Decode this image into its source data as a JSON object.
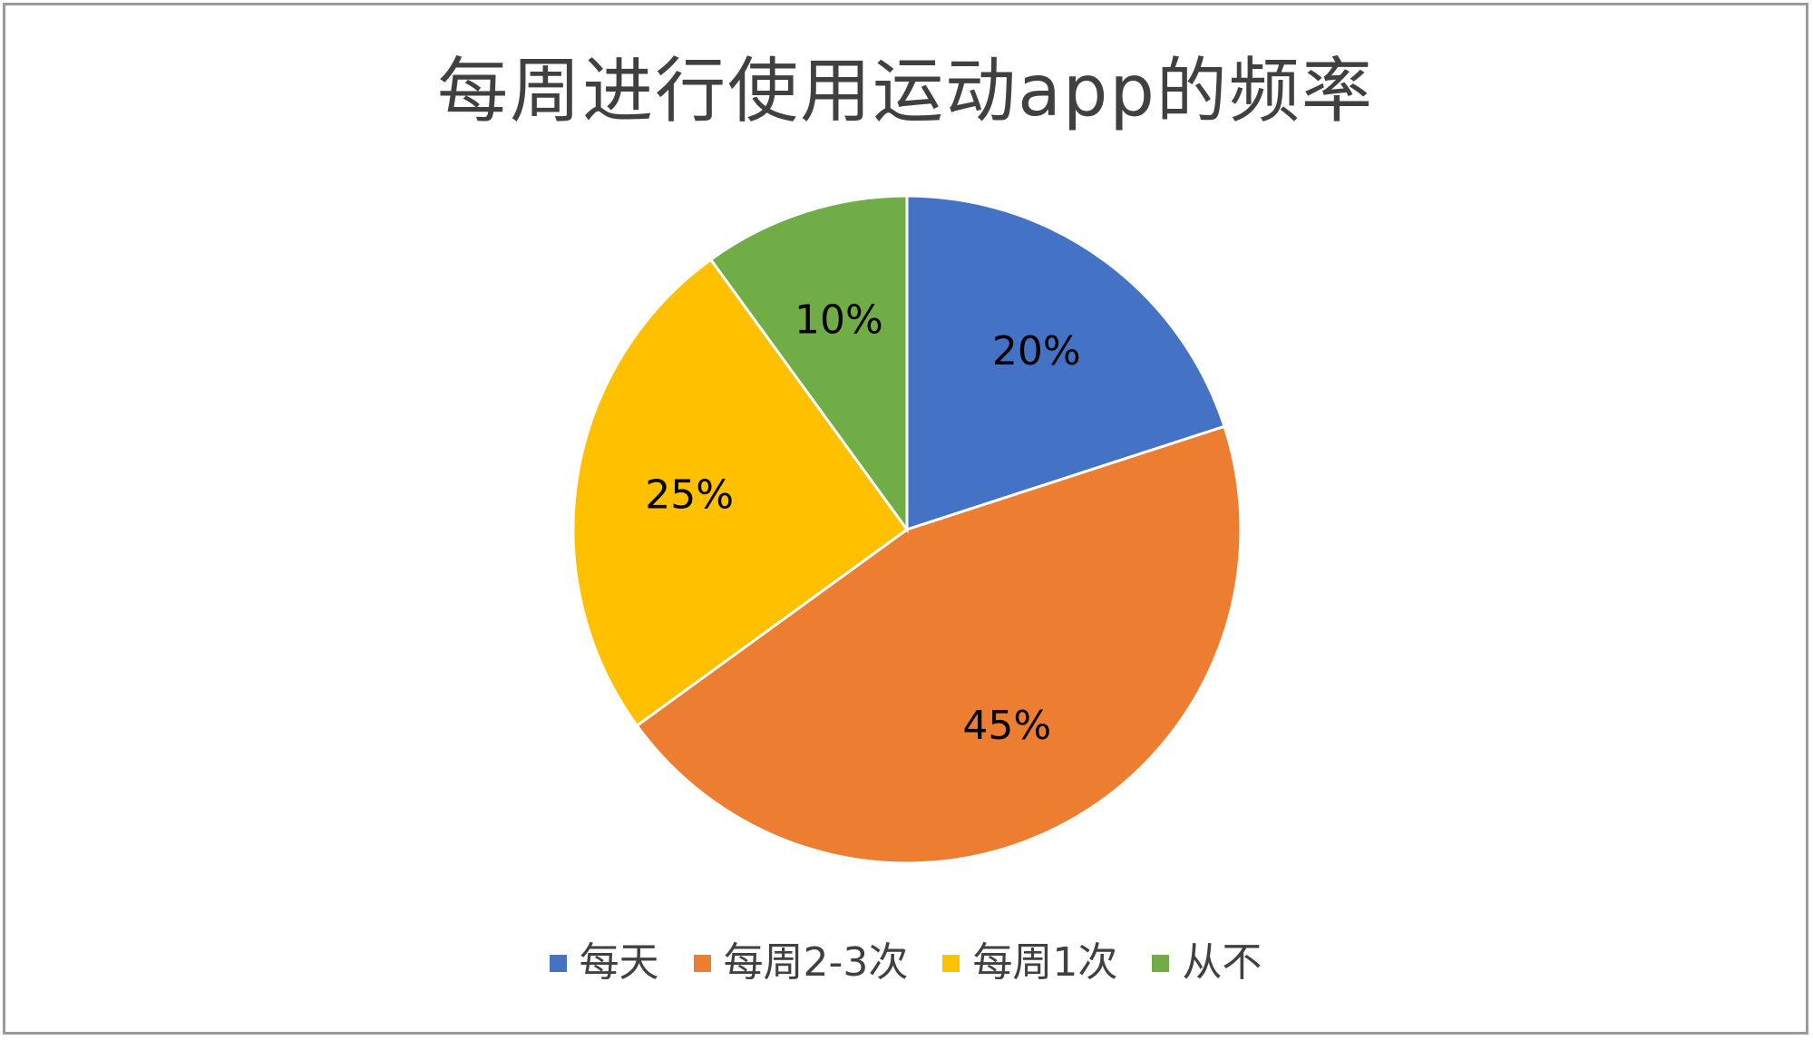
{
  "chart_data": {
    "type": "pie",
    "title": "每周进行使用运动app的频率",
    "categories": [
      "每天",
      "每周2-3次",
      "每周1次",
      "从不"
    ],
    "values": [
      20,
      45,
      25,
      10
    ],
    "data_labels": [
      "20%",
      "45%",
      "25%",
      "10%"
    ],
    "colors": [
      "#4472C4",
      "#ED7D31",
      "#FFC000",
      "#70AD47"
    ],
    "legend_position": "bottom",
    "start_angle": "top",
    "direction": "clockwise"
  }
}
